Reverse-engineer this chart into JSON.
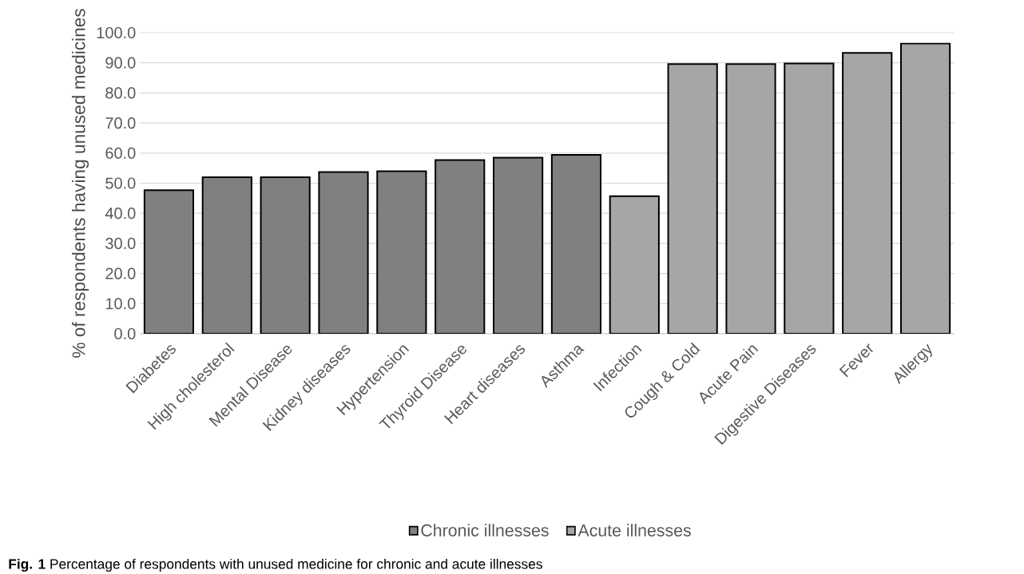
{
  "chart_data": {
    "type": "bar",
    "ylabel": "% of respondents having unused medicines",
    "categories": [
      "Diabetes",
      "High cholesterol",
      "Mental Disease",
      "Kidney diseases",
      "Hypertension",
      "Thyroid Disease",
      "Heart diseases",
      "Asthma",
      "Infection",
      "Cough & Cold",
      "Acute Pain",
      "Digestive Diseases",
      "Fever",
      "Allergy"
    ],
    "series": [
      {
        "name": "Chronic illnesses",
        "color": "#808080",
        "values": [
          47.7,
          52.0,
          52.0,
          53.7,
          54.0,
          57.7,
          58.5,
          59.4,
          null,
          null,
          null,
          null,
          null,
          null
        ]
      },
      {
        "name": "Acute illnesses",
        "color": "#a6a6a6",
        "values": [
          null,
          null,
          null,
          null,
          null,
          null,
          null,
          null,
          45.7,
          89.6,
          89.6,
          89.8,
          93.3,
          96.4
        ]
      }
    ],
    "ylim": [
      0,
      100
    ],
    "yticks": [
      {
        "value": 0,
        "label": "0.0"
      },
      {
        "value": 10,
        "label": "10.0"
      },
      {
        "value": 20,
        "label": "20.0"
      },
      {
        "value": 30,
        "label": "30.0"
      },
      {
        "value": 40,
        "label": "40.0"
      },
      {
        "value": 50,
        "label": "50.0"
      },
      {
        "value": 60,
        "label": "60.0"
      },
      {
        "value": 70,
        "label": "70.0"
      },
      {
        "value": 80,
        "label": "80.0"
      },
      {
        "value": 90,
        "label": "90.0"
      },
      {
        "value": 100,
        "label": "100.0"
      }
    ],
    "grid": "y",
    "legend": "bottom",
    "annotations": [
      "**Fig. 1** Percentage of respondents with unused medicine for chronic and acute illnesses"
    ]
  }
}
